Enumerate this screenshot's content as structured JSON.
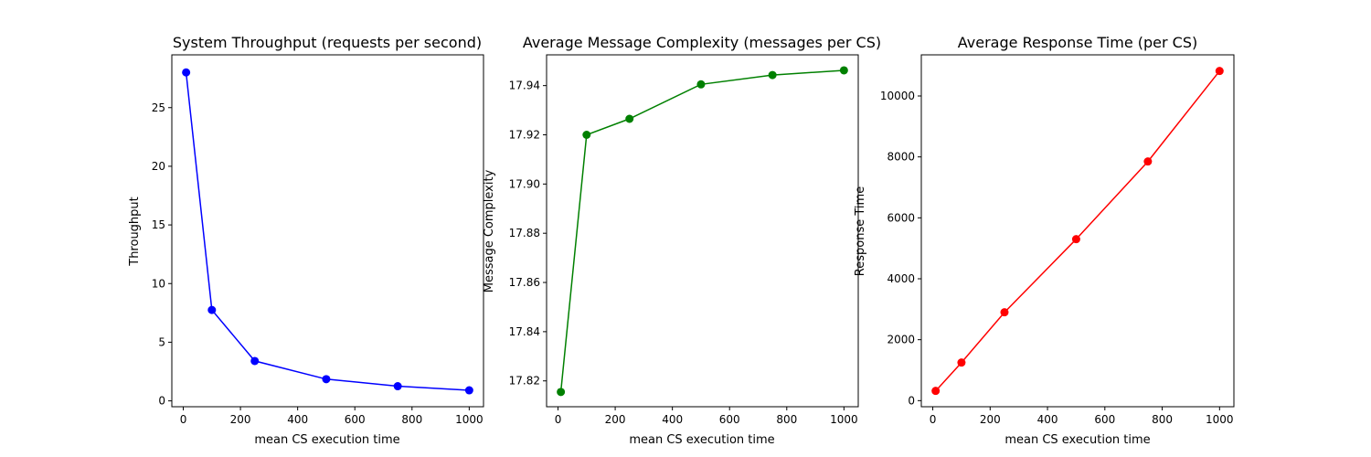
{
  "chart_data": [
    {
      "type": "line",
      "title": "System Throughput (requests per second)",
      "xlabel": "mean CS execution time",
      "ylabel": "Throughput",
      "color": "#0000ff",
      "x": [
        10,
        100,
        250,
        500,
        750,
        1000
      ],
      "y": [
        28.0,
        7.75,
        3.4,
        1.85,
        1.25,
        0.9
      ],
      "xlim": [
        -40,
        1050
      ],
      "ylim": [
        -0.5,
        29.5
      ],
      "xticks": [
        0,
        200,
        400,
        600,
        800,
        1000
      ],
      "yticks": [
        0,
        5,
        10,
        15,
        20,
        25
      ],
      "ytick_labels": [
        "0",
        "5",
        "10",
        "15",
        "20",
        "25"
      ]
    },
    {
      "type": "line",
      "title": "Average Message Complexity (messages per CS)",
      "xlabel": "mean CS execution time",
      "ylabel": "Message Complexity",
      "color": "#008000",
      "x": [
        10,
        100,
        250,
        500,
        750,
        1000
      ],
      "y": [
        17.8155,
        17.92,
        17.9265,
        17.9405,
        17.9443,
        17.9462
      ],
      "xlim": [
        -40,
        1050
      ],
      "ylim": [
        17.8095,
        17.9525
      ],
      "xticks": [
        0,
        200,
        400,
        600,
        800,
        1000
      ],
      "yticks": [
        17.82,
        17.84,
        17.86,
        17.88,
        17.9,
        17.92,
        17.94
      ],
      "ytick_labels": [
        "17.82",
        "17.84",
        "17.86",
        "17.88",
        "17.90",
        "17.92",
        "17.94"
      ]
    },
    {
      "type": "line",
      "title": "Average Response Time (per CS)",
      "xlabel": "mean CS execution time",
      "ylabel": "Response Time",
      "color": "#ff0000",
      "x": [
        10,
        100,
        250,
        500,
        750,
        1000
      ],
      "y": [
        320,
        1250,
        2900,
        5300,
        7850,
        10820
      ],
      "xlim": [
        -40,
        1050
      ],
      "ylim": [
        -200,
        11350
      ],
      "xticks": [
        0,
        200,
        400,
        600,
        800,
        1000
      ],
      "yticks": [
        0,
        2000,
        4000,
        6000,
        8000,
        10000
      ],
      "ytick_labels": [
        "0",
        "2000",
        "4000",
        "6000",
        "8000",
        "10000"
      ]
    }
  ]
}
